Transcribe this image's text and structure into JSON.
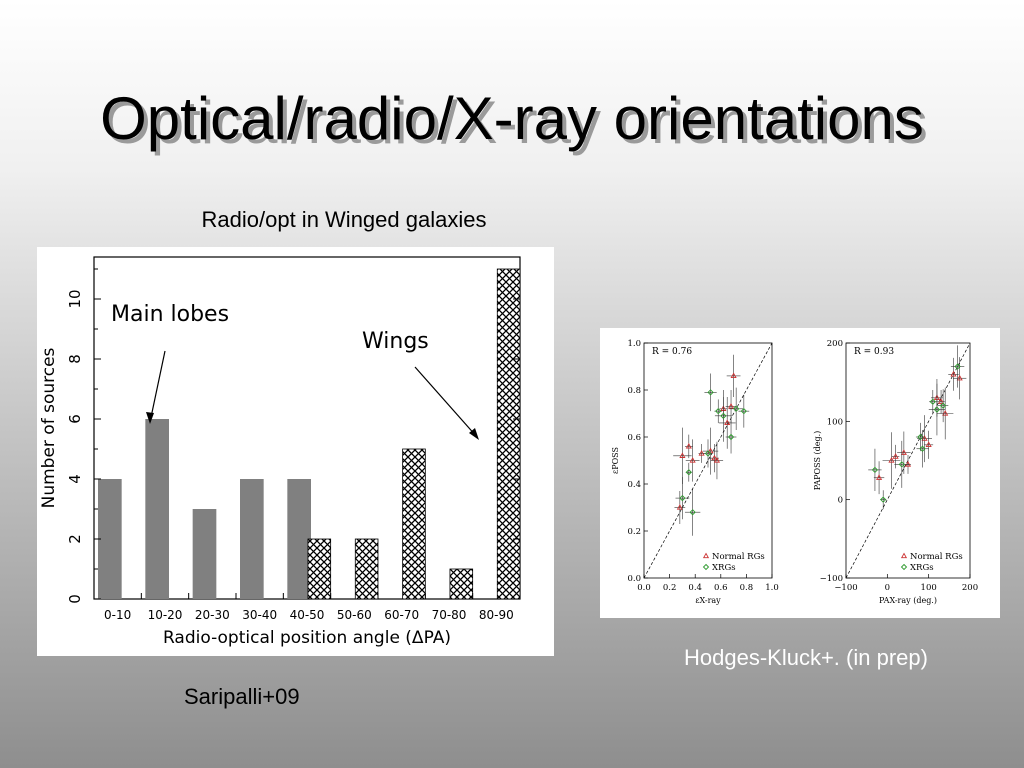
{
  "slide": {
    "title": "Optical/radio/X-ray orientations",
    "caption_top": "Radio/opt in Winged galaxies",
    "caption_left": "Saripalli+09",
    "caption_right": "Hodges-Kluck+. (in prep)"
  },
  "chart_data": [
    {
      "type": "bar",
      "xlabel": "Radio-optical position angle (ΔPA)",
      "ylabel": "Number of sources",
      "ylim": [
        0,
        11.4
      ],
      "yticks": [
        0,
        2,
        4,
        6,
        8,
        10
      ],
      "categories": [
        "0-10",
        "10-20",
        "20-30",
        "30-40",
        "40-50",
        "50-60",
        "60-70",
        "70-80",
        "80-90"
      ],
      "series": [
        {
          "values": [
            4,
            6,
            3,
            4,
            4,
            0,
            0,
            0,
            0
          ],
          "color": "#808080"
        },
        {
          "values": [
            0,
            0,
            0,
            0,
            2,
            2,
            5,
            1,
            11
          ],
          "color": "#000000"
        }
      ],
      "annotations": [
        {
          "text": "Main lobes",
          "points_to": "10-20"
        },
        {
          "text": "Wings",
          "points_to": "80-90"
        }
      ]
    },
    {
      "type": "scatter",
      "annotation": "R = 0.76",
      "xlabel": "εX-ray",
      "ylabel": "εPOSS",
      "xlim": [
        0,
        1
      ],
      "ylim": [
        0,
        1
      ],
      "xticks": [
        "0.0",
        "0.2",
        "0.4",
        "0.6",
        "0.8",
        "1.0"
      ],
      "yticks": [
        "0.0",
        "0.2",
        "0.4",
        "0.6",
        "0.8",
        "1.0"
      ],
      "legend": [
        "Normal RGs",
        "XRGs"
      ],
      "legend_position": "bottom-right",
      "series": [
        {
          "name": "Normal RGs",
          "color": "#cc3333",
          "points": [
            [
              0.28,
              0.3
            ],
            [
              0.3,
              0.52
            ],
            [
              0.35,
              0.56
            ],
            [
              0.38,
              0.5
            ],
            [
              0.45,
              0.53
            ],
            [
              0.52,
              0.54
            ],
            [
              0.55,
              0.51
            ],
            [
              0.57,
              0.5
            ],
            [
              0.62,
              0.72
            ],
            [
              0.65,
              0.66
            ],
            [
              0.68,
              0.73
            ],
            [
              0.7,
              0.86
            ]
          ]
        },
        {
          "name": "XRGs",
          "color": "#2e9a2e",
          "points": [
            [
              0.3,
              0.34
            ],
            [
              0.35,
              0.45
            ],
            [
              0.38,
              0.28
            ],
            [
              0.5,
              0.53
            ],
            [
              0.52,
              0.79
            ],
            [
              0.58,
              0.71
            ],
            [
              0.62,
              0.69
            ],
            [
              0.68,
              0.6
            ],
            [
              0.72,
              0.72
            ],
            [
              0.78,
              0.71
            ]
          ]
        }
      ]
    },
    {
      "type": "scatter",
      "annotation": "R = 0.93",
      "xlabel": "PAX-ray (deg.)",
      "ylabel": "PAPOSS (deg.)",
      "xlim": [
        -100,
        200
      ],
      "ylim": [
        -100,
        200
      ],
      "xticks": [
        "−100",
        "0",
        "100",
        "200"
      ],
      "yticks": [
        "−100",
        "0",
        "100",
        "200"
      ],
      "legend": [
        "Normal RGs",
        "XRGs"
      ],
      "legend_position": "bottom-right",
      "series": [
        {
          "name": "Normal RGs",
          "color": "#cc3333",
          "points": [
            [
              -20,
              28
            ],
            [
              10,
              50
            ],
            [
              20,
              55
            ],
            [
              40,
              60
            ],
            [
              50,
              45
            ],
            [
              90,
              78
            ],
            [
              100,
              70
            ],
            [
              120,
              130
            ],
            [
              130,
              125
            ],
            [
              140,
              110
            ],
            [
              160,
              160
            ],
            [
              175,
              155
            ]
          ]
        },
        {
          "name": "XRGs",
          "color": "#2e9a2e",
          "points": [
            [
              -30,
              38
            ],
            [
              -10,
              0
            ],
            [
              35,
              45
            ],
            [
              80,
              80
            ],
            [
              85,
              65
            ],
            [
              110,
              125
            ],
            [
              120,
              115
            ],
            [
              135,
              120
            ],
            [
              170,
              170
            ]
          ]
        }
      ]
    }
  ]
}
